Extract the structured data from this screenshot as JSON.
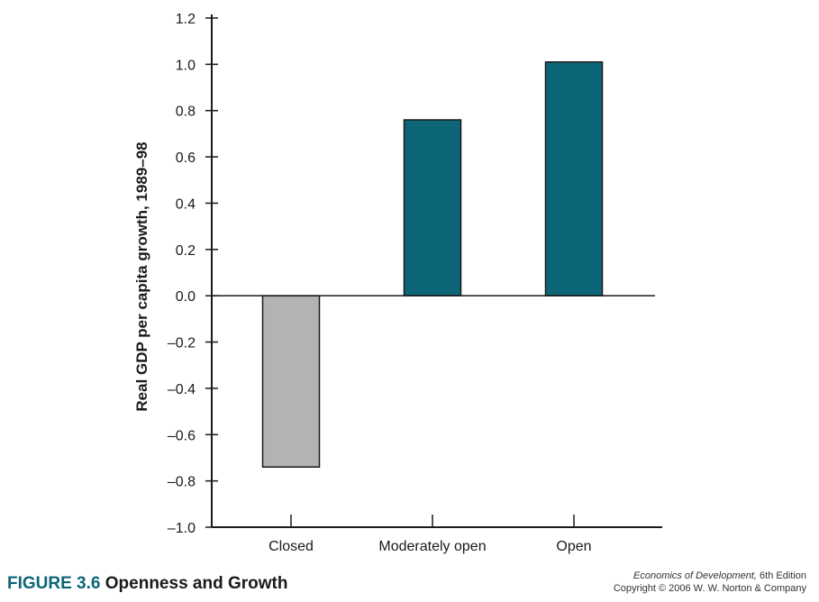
{
  "chart_data": {
    "type": "bar",
    "categories": [
      "Closed",
      "Moderately open",
      "Open"
    ],
    "values": [
      -0.74,
      0.76,
      1.01
    ],
    "colors": [
      "#b3b3b3",
      "#0d6677",
      "#0d6677"
    ],
    "ylabel": "Real GDP per capita growth, 1989–98",
    "xlabel": "",
    "ylim": [
      -1.0,
      1.2
    ],
    "yticks": [
      1.2,
      1.0,
      0.8,
      0.6,
      0.4,
      0.2,
      0.0,
      -0.2,
      -0.4,
      -0.6,
      -0.8,
      -1.0
    ],
    "ytick_labels": [
      "1.2",
      "1.0",
      "0.8",
      "0.6",
      "0.4",
      "0.2",
      "0.0",
      "–0.2",
      "–0.4",
      "–0.6",
      "–0.8",
      "–1.0"
    ],
    "grid": false,
    "zero_line": true
  },
  "caption": {
    "number": "FIGURE 3.6",
    "title": "Openness and Growth"
  },
  "credit": {
    "book": "Economics of Development,",
    "edition": "6th Edition",
    "copyright": "Copyright © 2006 W. W. Norton & Company"
  }
}
